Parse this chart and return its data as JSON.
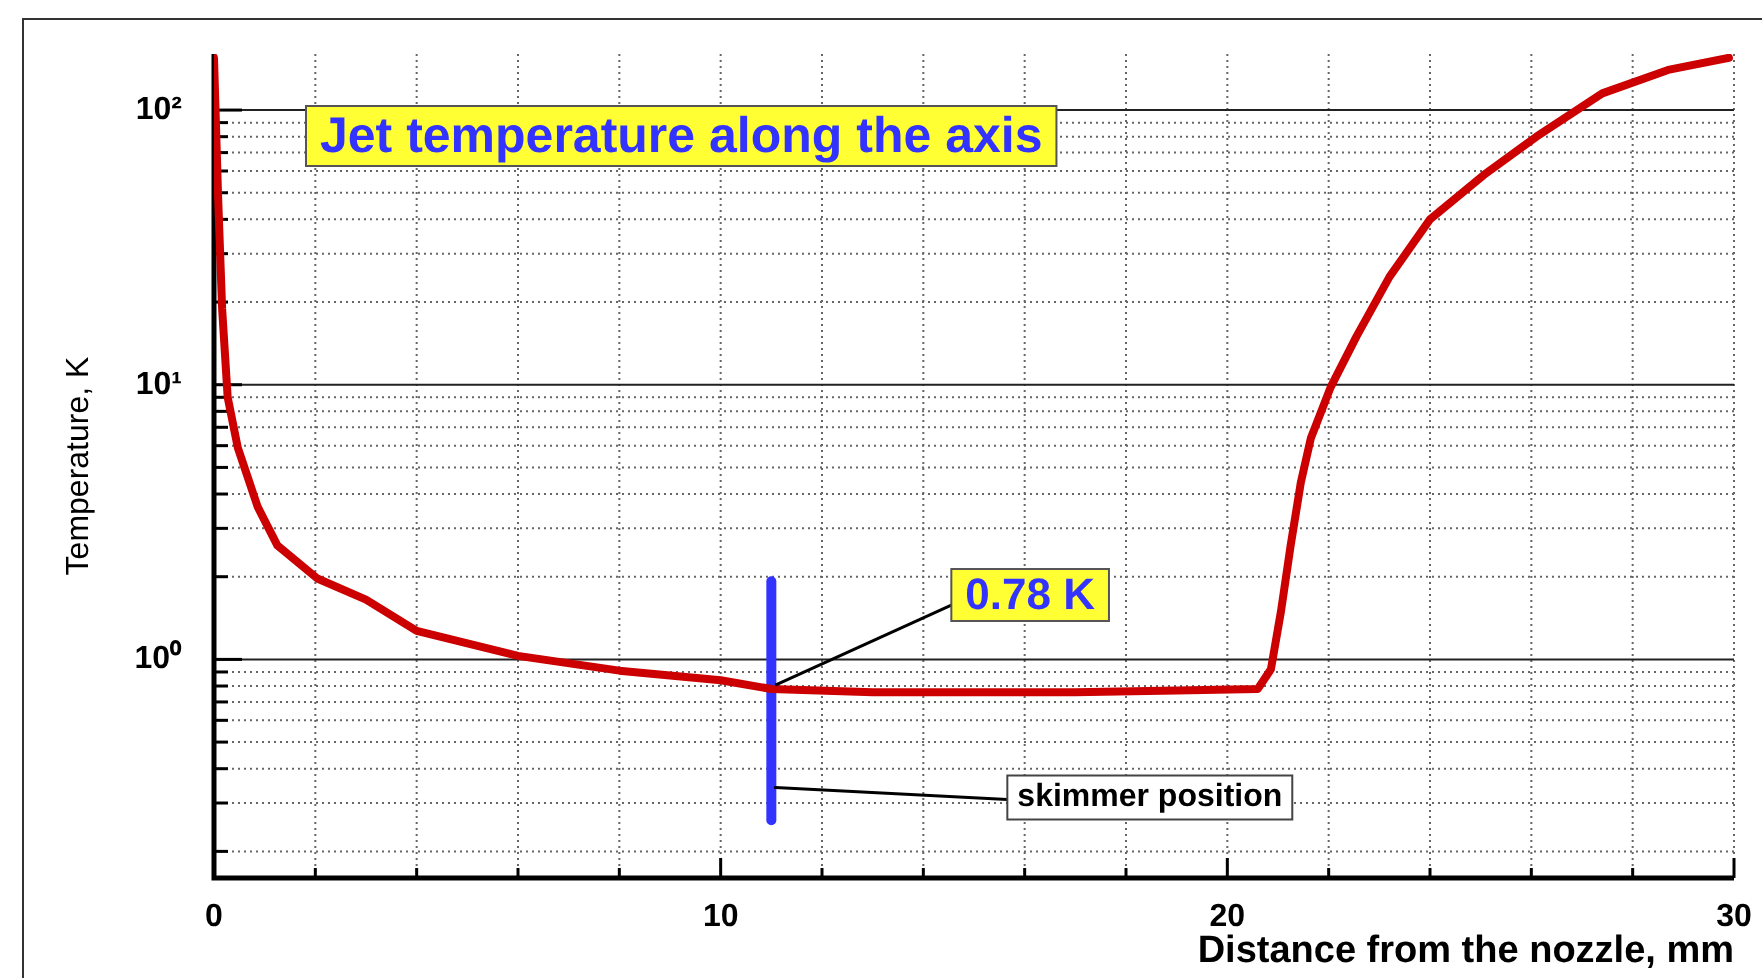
{
  "chart_data": {
    "type": "line",
    "title": "Jet temperature along the axis",
    "xlabel": "Distance from the nozzle, mm",
    "ylabel": "Temperature, K",
    "x": [
      0,
      0.08,
      0.16,
      0.27,
      0.47,
      0.86,
      1.25,
      2.04,
      3,
      4,
      6,
      8,
      10,
      11,
      13,
      15,
      17,
      19,
      20.6,
      20.86,
      21.06,
      21.25,
      21.45,
      21.65,
      22.04,
      22.55,
      23.2,
      24,
      25.06,
      26.1,
      27.4,
      28.7,
      29.9
    ],
    "series": [
      {
        "color": "#cc0000",
        "values": [
          155,
          49,
          19,
          9,
          5.9,
          3.6,
          2.6,
          1.97,
          1.65,
          1.27,
          1.03,
          0.91,
          0.84,
          0.78,
          0.76,
          0.76,
          0.76,
          0.77,
          0.78,
          0.92,
          1.5,
          2.6,
          4.4,
          6.4,
          9.8,
          15,
          24.7,
          40,
          58,
          80,
          115,
          140,
          155
        ]
      }
    ],
    "log": "y",
    "xlim": [
      0,
      30
    ],
    "ylim": [
      0.16,
      160
    ],
    "xticks": [
      0,
      {
        "value": 2,
        "label": null
      },
      {
        "value": 4,
        "label": null
      },
      {
        "value": 6,
        "label": null
      },
      {
        "value": 8,
        "label": null
      },
      10,
      {
        "value": 12,
        "label": null
      },
      {
        "value": 14,
        "label": null
      },
      {
        "value": 16,
        "label": null
      },
      {
        "value": 18,
        "label": null
      },
      20,
      {
        "value": 22,
        "label": null
      },
      {
        "value": 24,
        "label": null
      },
      {
        "value": 26,
        "label": null
      },
      {
        "value": 28,
        "label": null
      },
      30
    ],
    "yticks": [
      {
        "value": 0.2,
        "label": null
      },
      {
        "value": 0.3,
        "label": null
      },
      {
        "value": 0.4,
        "label": null
      },
      {
        "value": 0.5,
        "label": null
      },
      {
        "value": 0.6,
        "label": null
      },
      {
        "value": 0.7,
        "label": null
      },
      {
        "value": 0.8,
        "label": null
      },
      {
        "value": 0.9,
        "label": null
      },
      {
        "value": 1,
        "label": "10⁰"
      },
      {
        "value": 2,
        "label": null
      },
      {
        "value": 3,
        "label": null
      },
      {
        "value": 4,
        "label": null
      },
      {
        "value": 5,
        "label": null
      },
      {
        "value": 6,
        "label": null
      },
      {
        "value": 7,
        "label": null
      },
      {
        "value": 8,
        "label": null
      },
      {
        "value": 9,
        "label": null
      },
      {
        "value": 10,
        "label": "10¹"
      },
      {
        "value": 20,
        "label": null
      },
      {
        "value": 30,
        "label": null
      },
      {
        "value": 40,
        "label": null
      },
      {
        "value": 50,
        "label": null
      },
      {
        "value": 60,
        "label": null
      },
      {
        "value": 70,
        "label": null
      },
      {
        "value": 80,
        "label": null
      },
      {
        "value": 90,
        "label": null
      },
      {
        "value": 100,
        "label": "10²"
      }
    ],
    "grid": true,
    "legend": false,
    "marker": "none",
    "line_style": "solid",
    "ref_lines": [
      {
        "axis": "x",
        "value": 11,
        "label": "skimmer position",
        "color": "#3333ff"
      }
    ],
    "annotations": [
      {
        "text": "0.78 K",
        "x": 11,
        "y": 0.78
      }
    ]
  }
}
